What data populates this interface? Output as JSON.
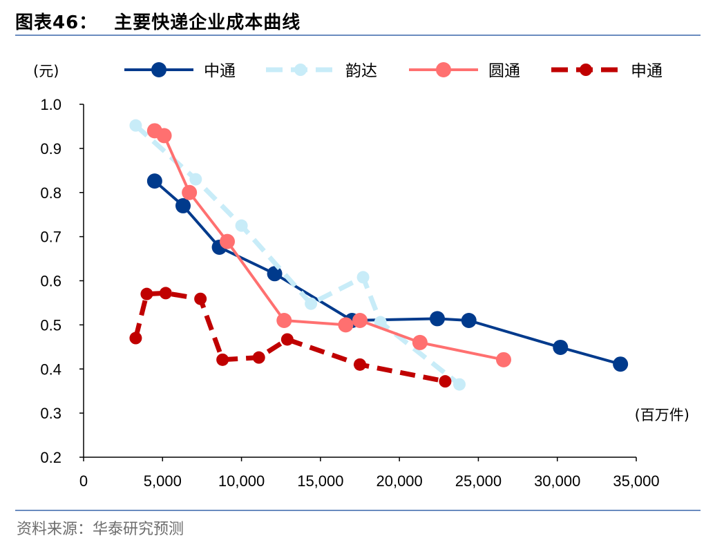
{
  "header": {
    "figure_no": "图表46：",
    "title": "主要快递企业成本曲线"
  },
  "footer": {
    "source": "资料来源：华泰研究预测"
  },
  "chart_data": {
    "type": "line",
    "ylabel": "(元)",
    "xlabel": "(百万件)",
    "xlim": [
      0,
      35000
    ],
    "ylim": [
      0.2,
      1.0
    ],
    "x_ticks": [
      0,
      5000,
      10000,
      15000,
      20000,
      25000,
      30000,
      35000
    ],
    "x_tick_labels": [
      "0",
      "5,000",
      "10,000",
      "15,000",
      "20,000",
      "25,000",
      "30,000",
      "35,000"
    ],
    "y_ticks": [
      0.2,
      0.3,
      0.4,
      0.5,
      0.6,
      0.7,
      0.8,
      0.9,
      1.0
    ],
    "y_tick_labels": [
      "0.2",
      "0.3",
      "0.4",
      "0.5",
      "0.6",
      "0.7",
      "0.8",
      "0.9",
      "1.0"
    ],
    "grid": false,
    "legend_position": "top",
    "series": [
      {
        "name": "中通",
        "color": "#003a8c",
        "style": "solid",
        "marker": "circle",
        "x": [
          4500,
          6300,
          8600,
          12100,
          17000,
          22400,
          24400,
          30200,
          34000
        ],
        "y": [
          0.826,
          0.77,
          0.676,
          0.616,
          0.51,
          0.514,
          0.51,
          0.449,
          0.411
        ]
      },
      {
        "name": "韵达",
        "color": "#c8ecf8",
        "style": "dash",
        "marker": "circle",
        "x": [
          3300,
          7100,
          10000,
          14400,
          17700,
          18800,
          23800
        ],
        "y": [
          0.952,
          0.83,
          0.725,
          0.548,
          0.608,
          0.506,
          0.365
        ]
      },
      {
        "name": "圆通",
        "color": "#ff7070",
        "style": "solid",
        "marker": "circle",
        "x": [
          4500,
          5100,
          6700,
          9100,
          12700,
          16600,
          17500,
          21300,
          26600
        ],
        "y": [
          0.94,
          0.929,
          0.8,
          0.689,
          0.51,
          0.5,
          0.51,
          0.46,
          0.421
        ]
      },
      {
        "name": "申通",
        "color": "#c00000",
        "style": "dash",
        "marker": "circle",
        "x": [
          3300,
          4000,
          5200,
          7400,
          8800,
          11100,
          12900,
          17500,
          22900
        ],
        "y": [
          0.47,
          0.57,
          0.572,
          0.559,
          0.421,
          0.426,
          0.467,
          0.41,
          0.372
        ]
      }
    ]
  }
}
